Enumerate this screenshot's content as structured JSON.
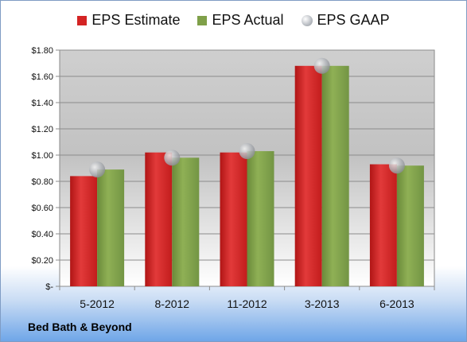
{
  "chart_data": {
    "type": "bar",
    "categories": [
      "5-2012",
      "8-2012",
      "11-2012",
      "3-2013",
      "6-2013"
    ],
    "series": [
      {
        "name": "EPS Estimate",
        "values": [
          0.84,
          1.02,
          1.02,
          1.68,
          0.93
        ],
        "color": "#d42424"
      },
      {
        "name": "EPS Actual",
        "values": [
          0.89,
          0.98,
          1.03,
          1.68,
          0.92
        ],
        "color": "#7fa049"
      },
      {
        "name": "EPS GAAP",
        "values": [
          0.89,
          0.98,
          1.03,
          1.68,
          0.92
        ],
        "color": "#b8bcc2",
        "marker": "circle"
      }
    ],
    "ylim": [
      0,
      1.8
    ],
    "yticks": [
      0,
      0.2,
      0.4,
      0.6,
      0.8,
      1.0,
      1.2,
      1.4,
      1.6,
      1.8
    ],
    "ytick_labels": [
      "$-",
      "$0.20",
      "$0.40",
      "$0.60",
      "$0.80",
      "$1.00",
      "$1.20",
      "$1.40",
      "$1.60",
      "$1.80"
    ],
    "grid": true,
    "legend_position": "top"
  },
  "footer": {
    "company": "Bed Bath & Beyond"
  }
}
